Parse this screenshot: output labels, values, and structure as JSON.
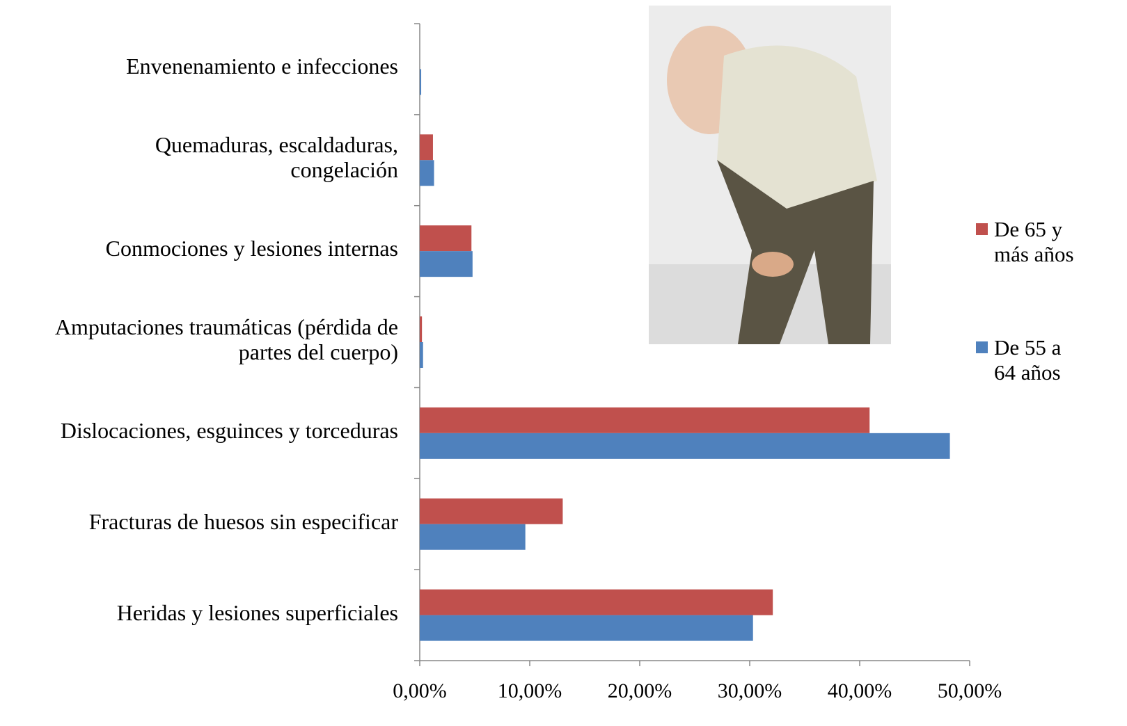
{
  "chart_data": {
    "type": "bar",
    "orientation": "horizontal",
    "categories": [
      "Envenenamiento e infecciones",
      "Quemaduras, escaldaduras,\ncongelación",
      "Conmociones y  lesiones internas",
      "Amputaciones traumáticas (pérdida de\npartes del cuerpo)",
      "Dislocaciones, esguinces y torceduras",
      "Fracturas de huesos sin especificar",
      "Heridas y lesiones superficiales"
    ],
    "series": [
      {
        "name": "De 65 y\nmás años",
        "color": "#c0504d",
        "values": [
          0,
          1.2,
          4.7,
          0.2,
          40.9,
          13.0,
          32.1
        ]
      },
      {
        "name": "De 55 a\n64 años",
        "color": "#4f81bd",
        "values": [
          0.13,
          1.3,
          4.8,
          0.3,
          48.2,
          9.6,
          30.3
        ]
      }
    ],
    "xlim": [
      0,
      50
    ],
    "xticks": [
      {
        "value": 0,
        "label": "0,00%"
      },
      {
        "value": 10,
        "label": "10,00%"
      },
      {
        "value": 20,
        "label": "20,00%"
      },
      {
        "value": 30,
        "label": "30,00%"
      },
      {
        "value": 40,
        "label": "40,00%"
      },
      {
        "value": 50,
        "label": "50,00%"
      }
    ],
    "grid": false,
    "legend": "right"
  }
}
